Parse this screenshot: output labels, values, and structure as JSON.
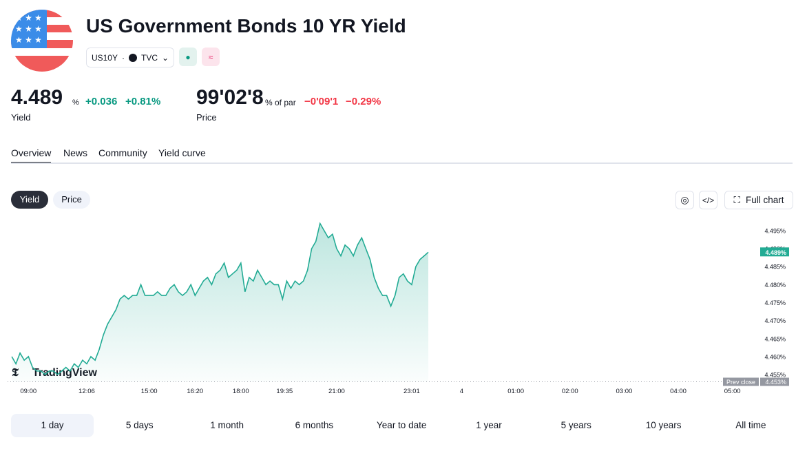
{
  "header": {
    "title": "US Government Bonds 10 YR Yield",
    "symbol": "US10Y",
    "exchange": "TVC",
    "yield": {
      "value": "4.489",
      "unit": "%",
      "change": "+0.036",
      "change_pct": "+0.81%",
      "label": "Yield"
    },
    "price": {
      "value": "99'02'8",
      "unit": "% of par",
      "change": "−0'09'1",
      "change_pct": "−0.29%",
      "label": "Price"
    }
  },
  "tabs": [
    "Overview",
    "News",
    "Community",
    "Yield curve"
  ],
  "chart_toggles": [
    "Yield",
    "Price"
  ],
  "full_chart": "Full chart",
  "watermark": "TradingView",
  "ranges": [
    "1 day",
    "5 days",
    "1 month",
    "6 months",
    "Year to date",
    "1 year",
    "5 years",
    "10 years",
    "All time"
  ],
  "chart_data": {
    "type": "line",
    "color": "#22ab94",
    "x": [
      0,
      1,
      2,
      3,
      4,
      5,
      6,
      7,
      8,
      9,
      10,
      11,
      12,
      13,
      14,
      15,
      16,
      17,
      18,
      19,
      20,
      21,
      22,
      23,
      24,
      25,
      26,
      27,
      28,
      29,
      30,
      31,
      32,
      33,
      34,
      35,
      36,
      37,
      38,
      39,
      40,
      41,
      42,
      43,
      44,
      45,
      46,
      47,
      48,
      49,
      50,
      51,
      52,
      53,
      54,
      55,
      56,
      57,
      58,
      59,
      60,
      61,
      62,
      63,
      64,
      65,
      66,
      67,
      68,
      69,
      70,
      71,
      72,
      73,
      74,
      75,
      76,
      77,
      78,
      79,
      80,
      81,
      82,
      83,
      84,
      85,
      86,
      87,
      88,
      89,
      90,
      91,
      92,
      93,
      94,
      95,
      96,
      97,
      98,
      99,
      100
    ],
    "values": [
      4.46,
      4.458,
      4.461,
      4.459,
      4.46,
      4.457,
      4.456,
      4.456,
      4.455,
      4.456,
      4.456,
      4.455,
      4.456,
      4.457,
      4.456,
      4.458,
      4.457,
      4.459,
      4.458,
      4.46,
      4.459,
      4.462,
      4.466,
      4.469,
      4.471,
      4.473,
      4.476,
      4.477,
      4.476,
      4.477,
      4.477,
      4.48,
      4.477,
      4.477,
      4.477,
      4.478,
      4.477,
      4.477,
      4.479,
      4.48,
      4.478,
      4.477,
      4.478,
      4.48,
      4.477,
      4.479,
      4.481,
      4.482,
      4.48,
      4.483,
      4.484,
      4.486,
      4.482,
      4.483,
      4.484,
      4.486,
      4.478,
      4.482,
      4.481,
      4.484,
      4.482,
      4.48,
      4.481,
      4.48,
      4.48,
      4.476,
      4.481,
      4.479,
      4.481,
      4.48,
      4.481,
      4.484,
      4.49,
      4.492,
      4.497,
      4.495,
      4.493,
      4.494,
      4.49,
      4.488,
      4.491,
      4.49,
      4.488,
      4.491,
      4.493,
      4.49,
      4.487,
      4.482,
      4.479,
      4.477,
      4.477,
      4.474,
      4.477,
      4.482,
      4.483,
      4.481,
      4.48,
      4.485,
      4.487,
      4.488,
      4.489
    ],
    "last_label": "4.489%",
    "prev_close": {
      "value": 4.453,
      "label": "4.453%",
      "text": "Prev close"
    },
    "xlim": [
      -1,
      179
    ],
    "ylim": [
      4.453,
      4.498
    ],
    "xticks": [
      {
        "value": 4,
        "label": "09:00"
      },
      {
        "value": 18,
        "label": "12:06"
      },
      {
        "value": 33,
        "label": "15:00"
      },
      {
        "value": 44,
        "label": "16:20"
      },
      {
        "value": 55,
        "label": "18:00"
      },
      {
        "value": 65.5,
        "label": "19:35"
      },
      {
        "value": 78,
        "label": "21:00"
      },
      {
        "value": 96,
        "label": "23:01"
      },
      {
        "value": 108,
        "label": "4"
      },
      {
        "value": 121,
        "label": "01:00"
      },
      {
        "value": 134,
        "label": "02:00"
      },
      {
        "value": 147,
        "label": "03:00"
      },
      {
        "value": 160,
        "label": "04:00"
      },
      {
        "value": 173,
        "label": "05:00"
      }
    ],
    "yticks": [
      {
        "value": 4.455,
        "label": "4.455%"
      },
      {
        "value": 4.46,
        "label": "4.460%"
      },
      {
        "value": 4.465,
        "label": "4.465%"
      },
      {
        "value": 4.47,
        "label": "4.470%"
      },
      {
        "value": 4.475,
        "label": "4.475%"
      },
      {
        "value": 4.48,
        "label": "4.480%"
      },
      {
        "value": 4.485,
        "label": "4.485%"
      },
      {
        "value": 4.49,
        "label": "4.490%"
      },
      {
        "value": 4.495,
        "label": "4.495%"
      }
    ]
  }
}
